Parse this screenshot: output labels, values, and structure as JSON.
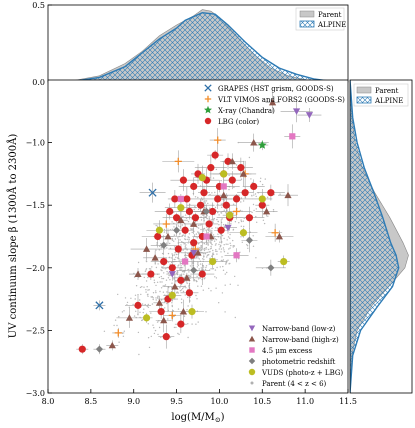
{
  "chart_data": {
    "type": "scatter",
    "xlabel": "log(M/M",
    "xlabel_sub": "⊙",
    "xlabel_tail": ")",
    "ylabel": "UV continuum slope β (1300Å to 2300Å)",
    "xlim": [
      8.0,
      11.5
    ],
    "ylim": [
      -3.0,
      -0.5
    ],
    "xticks": [
      8.0,
      8.5,
      9.0,
      9.5,
      10.0,
      10.5,
      11.0,
      11.5
    ],
    "xtick_labels": [
      "8.0",
      "8.5",
      "9.0",
      "9.5",
      "10.0",
      "10.5",
      "11.0",
      "11.5"
    ],
    "yticks": [
      -3.0,
      -2.5,
      -2.0,
      -1.5,
      -1.0
    ],
    "ytick_labels": [
      "−3.0",
      "−2.5",
      "−2.0",
      "−1.5",
      "−1.0"
    ],
    "top_panel": {
      "ylim": [
        0,
        0.5
      ],
      "yticks": [
        0.0,
        0.5
      ],
      "ytick_labels": [
        "0.0",
        "0.5"
      ],
      "legend": [
        {
          "label": "Parent",
          "style": "filled",
          "color": "#c8c8c8"
        },
        {
          "label": "ALPINE",
          "style": "hatched",
          "color": "#2e7bb5"
        }
      ],
      "parent_density": [
        [
          8.0,
          0.0
        ],
        [
          8.3,
          0.01
        ],
        [
          8.6,
          0.04
        ],
        [
          8.9,
          0.12
        ],
        [
          9.1,
          0.2
        ],
        [
          9.3,
          0.3
        ],
        [
          9.5,
          0.37
        ],
        [
          9.7,
          0.43
        ],
        [
          9.8,
          0.47
        ],
        [
          9.9,
          0.46
        ],
        [
          10.0,
          0.42
        ],
        [
          10.2,
          0.3
        ],
        [
          10.4,
          0.18
        ],
        [
          10.6,
          0.09
        ],
        [
          10.8,
          0.04
        ],
        [
          11.0,
          0.015
        ],
        [
          11.2,
          0.003
        ],
        [
          11.5,
          0.0
        ]
      ],
      "alpine_density": [
        [
          8.0,
          0.0
        ],
        [
          8.3,
          0.005
        ],
        [
          8.6,
          0.03
        ],
        [
          8.9,
          0.1
        ],
        [
          9.1,
          0.19
        ],
        [
          9.3,
          0.28
        ],
        [
          9.5,
          0.35
        ],
        [
          9.6,
          0.4
        ],
        [
          9.8,
          0.45
        ],
        [
          9.95,
          0.44
        ],
        [
          10.1,
          0.37
        ],
        [
          10.3,
          0.26
        ],
        [
          10.5,
          0.16
        ],
        [
          10.7,
          0.09
        ],
        [
          10.9,
          0.05
        ],
        [
          11.1,
          0.02
        ],
        [
          11.3,
          0.005
        ],
        [
          11.5,
          0.0
        ]
      ]
    },
    "right_panel": {
      "legend": [
        {
          "label": "Parent",
          "style": "filled",
          "color": "#c8c8c8"
        },
        {
          "label": "ALPINE",
          "style": "hatched",
          "color": "#2e7bb5"
        }
      ],
      "parent_density": [
        [
          -3.0,
          0.0
        ],
        [
          -2.7,
          0.02
        ],
        [
          -2.5,
          0.08
        ],
        [
          -2.3,
          0.25
        ],
        [
          -2.1,
          0.5
        ],
        [
          -2.0,
          0.62
        ],
        [
          -1.9,
          0.66
        ],
        [
          -1.8,
          0.6
        ],
        [
          -1.6,
          0.45
        ],
        [
          -1.4,
          0.28
        ],
        [
          -1.2,
          0.14
        ],
        [
          -1.0,
          0.06
        ],
        [
          -0.8,
          0.02
        ],
        [
          -0.5,
          0.0
        ]
      ],
      "alpine_density": [
        [
          -3.0,
          0.0
        ],
        [
          -2.7,
          0.03
        ],
        [
          -2.5,
          0.12
        ],
        [
          -2.3,
          0.32
        ],
        [
          -2.15,
          0.48
        ],
        [
          -2.0,
          0.55
        ],
        [
          -1.9,
          0.52
        ],
        [
          -1.8,
          0.46
        ],
        [
          -1.6,
          0.37
        ],
        [
          -1.4,
          0.27
        ],
        [
          -1.2,
          0.16
        ],
        [
          -1.0,
          0.08
        ],
        [
          -0.8,
          0.03
        ],
        [
          -0.5,
          0.0
        ]
      ]
    },
    "legend": [
      {
        "label": "GRAPES (HST grism, GOODS-S)",
        "marker": "x",
        "color": "#2e6fa8"
      },
      {
        "label": "VLT VIMOS and FORS2 (GOODS-S)",
        "marker": "plus",
        "color": "#f28c28"
      },
      {
        "label": "X-ray (Chandra)",
        "marker": "star",
        "color": "#2e9e3a"
      },
      {
        "label": "LBG (color)",
        "marker": "circle",
        "color": "#d62728"
      },
      {
        "label": "Narrow-band (low-z)",
        "marker": "triangle-down",
        "color": "#9467bd"
      },
      {
        "label": "Narrow-band (high-z)",
        "marker": "triangle-up",
        "color": "#8c564b"
      },
      {
        "label": "4.5 μm excess",
        "marker": "square",
        "color": "#e377c2"
      },
      {
        "label": "photometric redshift",
        "marker": "diamond",
        "color": "#7f7f7f"
      },
      {
        "label": "VUDS (photo-z + LBG)",
        "marker": "circle",
        "color": "#bcbd22"
      },
      {
        "label": "Parent (4 < z < 6)",
        "marker": "dot",
        "color": "#b0b0b0"
      }
    ],
    "series": [
      {
        "name": "GRAPES (HST grism, GOODS-S)",
        "marker": "x",
        "color": "#2e6fa8",
        "x": [
          8.6,
          9.22
        ],
        "y": [
          -2.3,
          -1.4
        ]
      },
      {
        "name": "VLT VIMOS and FORS2 (GOODS-S)",
        "marker": "plus",
        "color": "#f28c28",
        "x": [
          8.82,
          9.38,
          9.45,
          9.52,
          9.72,
          9.98,
          10.2,
          10.3,
          10.65
        ],
        "y": [
          -2.52,
          -1.65,
          -2.38,
          -1.15,
          -1.85,
          -0.98,
          -1.55,
          -1.25,
          -1.72
        ]
      },
      {
        "name": "X-ray (Chandra)",
        "marker": "star",
        "color": "#2e9e3a",
        "x": [
          10.5
        ],
        "y": [
          -1.02
        ]
      },
      {
        "name": "LBG (color)",
        "marker": "circle",
        "color": "#d62728",
        "x": [
          8.4,
          9.05,
          9.2,
          9.28,
          9.32,
          9.38,
          9.42,
          9.45,
          9.48,
          9.5,
          9.52,
          9.55,
          9.58,
          9.6,
          9.62,
          9.65,
          9.68,
          9.7,
          9.72,
          9.75,
          9.78,
          9.8,
          9.82,
          9.85,
          9.88,
          9.9,
          9.92,
          9.95,
          9.98,
          10.0,
          10.02,
          10.05,
          10.08,
          10.1,
          10.12,
          10.15,
          10.2,
          10.25,
          10.3,
          10.35,
          10.4,
          10.5,
          10.6,
          9.4,
          9.55,
          9.35,
          9.65,
          9.7,
          9.8
        ],
        "y": [
          -2.65,
          -2.3,
          -2.05,
          -1.75,
          -2.35,
          -2.55,
          -1.55,
          -2.0,
          -1.45,
          -1.6,
          -1.85,
          -2.1,
          -1.3,
          -1.7,
          -1.45,
          -1.55,
          -1.9,
          -1.35,
          -1.6,
          -1.25,
          -1.5,
          -1.75,
          -1.4,
          -1.3,
          -1.65,
          -1.2,
          -1.55,
          -1.1,
          -1.45,
          -1.35,
          -1.7,
          -1.25,
          -1.5,
          -1.15,
          -1.6,
          -1.3,
          -1.45,
          -1.2,
          -1.4,
          -1.6,
          -1.35,
          -1.5,
          -1.4,
          -2.25,
          -2.45,
          -1.95,
          -2.2,
          -1.8,
          -2.05
        ]
      },
      {
        "name": "Narrow-band (low-z)",
        "marker": "triangle-down",
        "color": "#9467bd",
        "x": [
          9.45,
          9.7,
          10.1,
          10.9,
          11.05
        ],
        "y": [
          -2.05,
          -1.88,
          -1.68,
          -0.75,
          -0.78
        ]
      },
      {
        "name": "Narrow-band (high-z)",
        "marker": "triangle-up",
        "color": "#8c564b",
        "x": [
          8.75,
          8.95,
          9.05,
          9.15,
          9.25,
          9.35,
          9.4,
          9.48,
          9.55,
          9.62,
          9.7,
          9.75,
          9.82,
          9.9,
          10.05,
          10.15,
          10.28,
          10.4,
          10.55,
          10.62,
          10.7,
          10.8,
          9.3,
          9.58
        ],
        "y": [
          -2.62,
          -2.4,
          -2.05,
          -1.85,
          -1.92,
          -2.42,
          -1.75,
          -2.15,
          -1.62,
          -2.08,
          -1.65,
          -1.88,
          -1.55,
          -1.75,
          -1.42,
          -1.15,
          -1.25,
          -1.0,
          -1.55,
          -0.68,
          -1.75,
          -1.42,
          -2.28,
          -2.35
        ]
      },
      {
        "name": "4.5 μm excess",
        "marker": "square",
        "color": "#e377c2",
        "x": [
          9.55,
          9.6,
          9.85,
          10.05,
          10.2,
          10.85
        ],
        "y": [
          -1.45,
          -1.95,
          -1.75,
          -1.35,
          -1.9,
          -0.95
        ]
      },
      {
        "name": "photometric redshift",
        "marker": "diamond",
        "color": "#7f7f7f",
        "x": [
          8.6,
          9.35,
          9.5,
          9.7,
          9.85,
          10.35,
          10.6
        ],
        "y": [
          -2.65,
          -1.82,
          -1.7,
          -2.02,
          -1.55,
          -1.78,
          -2.0
        ]
      },
      {
        "name": "VUDS (photo-z + LBG)",
        "marker": "circle",
        "color": "#bcbd22",
        "x": [
          9.15,
          9.3,
          9.45,
          9.55,
          9.68,
          9.8,
          9.92,
          10.05,
          10.12,
          10.28,
          10.5,
          10.75
        ],
        "y": [
          -2.4,
          -1.7,
          -2.22,
          -1.52,
          -2.35,
          -1.28,
          -1.95,
          -1.25,
          -1.58,
          -1.72,
          -1.45,
          -1.95
        ]
      }
    ]
  }
}
